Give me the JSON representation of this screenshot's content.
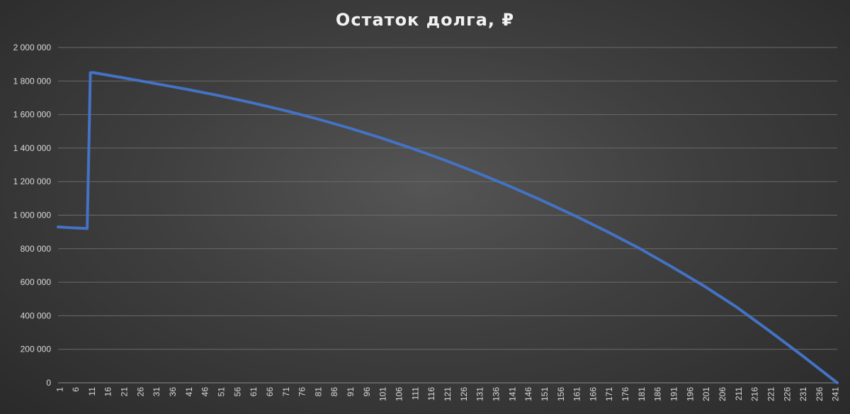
{
  "chart_data": {
    "type": "line",
    "title": "Остаток долга, ₽",
    "xlabel": "",
    "ylabel": "",
    "xlim": [
      1,
      242
    ],
    "ylim": [
      0,
      2000000
    ],
    "y_ticks": [
      0,
      200000,
      400000,
      600000,
      800000,
      1000000,
      1200000,
      1400000,
      1600000,
      1800000,
      2000000
    ],
    "y_tick_labels": [
      "0",
      "200 000",
      "400 000",
      "600 000",
      "800 000",
      "1 000 000",
      "1 200 000",
      "1 400 000",
      "1 600 000",
      "1 800 000",
      "2 000 000"
    ],
    "x_tick_labels": [
      "1",
      "6",
      "11",
      "16",
      "21",
      "26",
      "31",
      "36",
      "41",
      "46",
      "51",
      "56",
      "61",
      "66",
      "71",
      "76",
      "81",
      "86",
      "91",
      "96",
      "101",
      "106",
      "111",
      "116",
      "121",
      "126",
      "131",
      "136",
      "141",
      "146",
      "151",
      "156",
      "161",
      "166",
      "171",
      "176",
      "181",
      "186",
      "191",
      "196",
      "201",
      "206",
      "211",
      "216",
      "221",
      "226",
      "231",
      "236",
      "241"
    ],
    "grid": true,
    "legend": "none",
    "series": [
      {
        "color": "#4472c4",
        "x": [
          1,
          5,
          10,
          11,
          12,
          21,
          31,
          41,
          51,
          61,
          71,
          81,
          91,
          101,
          111,
          121,
          131,
          141,
          151,
          161,
          171,
          181,
          191,
          201,
          211,
          221,
          231,
          242
        ],
        "y": [
          930000,
          925000,
          920000,
          1850000,
          1850000,
          1820000,
          1785000,
          1750000,
          1712000,
          1670000,
          1625000,
          1575000,
          1520000,
          1460000,
          1395000,
          1325000,
          1250000,
          1170000,
          1085000,
          995000,
          900000,
          800000,
          690000,
          575000,
          450000,
          310000,
          165000,
          0
        ]
      }
    ]
  }
}
